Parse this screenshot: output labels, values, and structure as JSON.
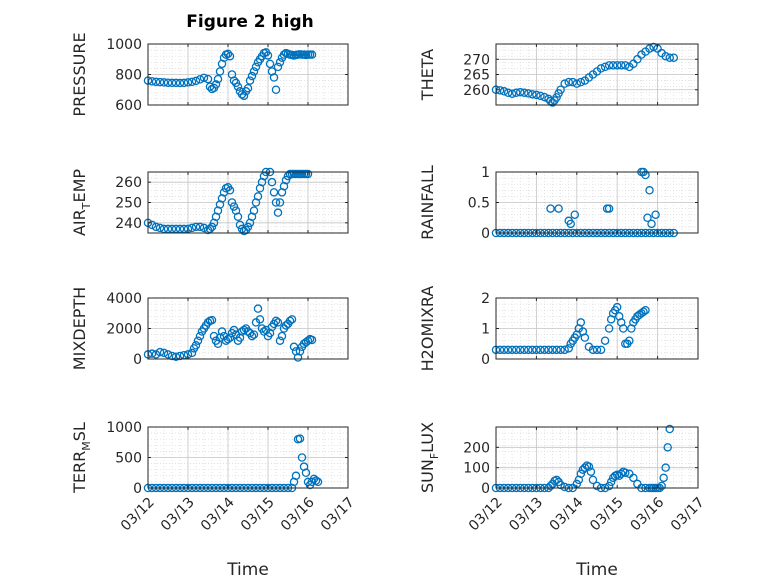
{
  "figure": {
    "title": "Figure 2 high",
    "marker_color": "#0072BD",
    "axes_color": "#262626",
    "grid_color": "#b0b0b0"
  },
  "chart_data": [
    {
      "type": "scatter",
      "ylabel": "PRESSURE",
      "ylabel_sub": "",
      "ylim": [
        600,
        1000
      ],
      "yticks": [
        600,
        800,
        1000
      ],
      "show_x_ticklabels": false,
      "xlabel": "",
      "x": [
        12.0,
        12.1,
        12.2,
        12.3,
        12.4,
        12.5,
        12.6,
        12.7,
        12.8,
        12.9,
        13.0,
        13.1,
        13.2,
        13.3,
        13.4,
        13.5,
        13.55,
        13.6,
        13.65,
        13.7,
        13.75,
        13.8,
        13.85,
        13.9,
        13.95,
        14.0,
        14.05,
        14.1,
        14.15,
        14.2,
        14.25,
        14.3,
        14.35,
        14.4,
        14.45,
        14.5,
        14.55,
        14.6,
        14.65,
        14.7,
        14.75,
        14.8,
        14.85,
        14.9,
        14.95,
        15.0,
        15.05,
        15.1,
        15.15,
        15.2,
        15.25,
        15.3,
        15.35,
        15.4,
        15.45,
        15.5,
        15.55,
        15.6,
        15.65,
        15.7,
        15.75,
        15.8,
        15.85,
        15.9,
        15.95,
        16.0,
        16.05,
        16.1
      ],
      "y": [
        760,
        755,
        752,
        750,
        748,
        746,
        745,
        745,
        744,
        745,
        748,
        752,
        758,
        768,
        778,
        770,
        720,
        705,
        712,
        735,
        770,
        820,
        870,
        910,
        930,
        935,
        920,
        800,
        760,
        745,
        720,
        690,
        670,
        660,
        690,
        710,
        760,
        790,
        820,
        850,
        880,
        900,
        920,
        940,
        945,
        925,
        870,
        820,
        780,
        700,
        850,
        880,
        910,
        930,
        940,
        935,
        930,
        928,
        925,
        928,
        930,
        932,
        930,
        930,
        928,
        930,
        930,
        930
      ]
    },
    {
      "type": "scatter",
      "ylabel": "THETA",
      "ylabel_sub": "",
      "ylim": [
        255,
        275
      ],
      "yticks": [
        260,
        265,
        270
      ],
      "show_x_ticklabels": false,
      "xlabel": "",
      "x": [
        12.0,
        12.1,
        12.2,
        12.3,
        12.4,
        12.5,
        12.6,
        12.7,
        12.8,
        12.9,
        13.0,
        13.1,
        13.2,
        13.3,
        13.35,
        13.4,
        13.45,
        13.5,
        13.55,
        13.6,
        13.7,
        13.8,
        13.9,
        14.0,
        14.1,
        14.2,
        14.3,
        14.4,
        14.5,
        14.6,
        14.7,
        14.8,
        14.9,
        15.0,
        15.1,
        15.2,
        15.3,
        15.4,
        15.5,
        15.6,
        15.7,
        15.8,
        15.9,
        16.0,
        16.1,
        16.2,
        16.3,
        16.4
      ],
      "y": [
        260,
        259.8,
        259.5,
        259,
        258.7,
        259,
        259.2,
        259,
        258.8,
        258.5,
        258.3,
        258,
        257.6,
        257,
        256.3,
        255.8,
        256.5,
        257.5,
        258.8,
        260,
        262,
        262.5,
        262.5,
        262,
        262.5,
        263,
        264,
        265,
        266,
        267,
        267.5,
        268,
        268,
        268,
        268,
        268,
        267.5,
        268.5,
        270,
        271.5,
        272.5,
        273.5,
        274,
        273.5,
        272,
        271,
        270.5,
        270.5
      ]
    },
    {
      "type": "scatter",
      "ylabel": "AIR",
      "ylabel_sub": "T",
      "ylabel_after": "EMP",
      "ylim": [
        235,
        265
      ],
      "yticks": [
        240,
        250,
        260
      ],
      "show_x_ticklabels": false,
      "xlabel": "",
      "x": [
        12.0,
        12.1,
        12.2,
        12.3,
        12.4,
        12.5,
        12.6,
        12.7,
        12.8,
        12.9,
        13.0,
        13.1,
        13.2,
        13.3,
        13.4,
        13.5,
        13.55,
        13.6,
        13.65,
        13.7,
        13.75,
        13.8,
        13.85,
        13.9,
        13.95,
        14.0,
        14.05,
        14.1,
        14.15,
        14.2,
        14.25,
        14.3,
        14.35,
        14.4,
        14.45,
        14.5,
        14.55,
        14.6,
        14.65,
        14.7,
        14.75,
        14.8,
        14.85,
        14.9,
        14.95,
        15.0,
        15.05,
        15.1,
        15.15,
        15.2,
        15.25,
        15.3,
        15.35,
        15.4,
        15.45,
        15.5,
        15.55,
        15.6,
        15.65,
        15.7,
        15.75,
        15.8,
        15.85,
        15.9,
        15.95,
        16.0
      ],
      "y": [
        240,
        239,
        238,
        237.5,
        237,
        237,
        237,
        237,
        237,
        237,
        237,
        237.5,
        238,
        238,
        237.5,
        236.5,
        237,
        238,
        240,
        243,
        246,
        249,
        252,
        255,
        257,
        257.5,
        256,
        250,
        248,
        246,
        243,
        239,
        237,
        236,
        236.5,
        238,
        240,
        243,
        246,
        250,
        253,
        257,
        260,
        263,
        265,
        266,
        265,
        260,
        255,
        250,
        245,
        250,
        255,
        258,
        261,
        263,
        264,
        264,
        264,
        264,
        264,
        264,
        264,
        264,
        264,
        264
      ]
    },
    {
      "type": "scatter",
      "ylabel": "RAINFALL",
      "ylabel_sub": "",
      "ylim": [
        0,
        1
      ],
      "yticks": [
        0,
        0.5,
        1
      ],
      "show_x_ticklabels": false,
      "xlabel": "",
      "x": [
        12.0,
        12.1,
        12.2,
        12.3,
        12.4,
        12.5,
        12.6,
        12.7,
        12.8,
        12.9,
        13.0,
        13.1,
        13.2,
        13.3,
        13.4,
        13.5,
        13.6,
        13.7,
        13.8,
        13.9,
        14.0,
        14.1,
        14.2,
        14.3,
        14.4,
        14.5,
        14.6,
        14.7,
        14.8,
        14.9,
        15.0,
        15.1,
        15.2,
        15.3,
        15.4,
        15.5,
        15.6,
        15.7,
        15.8,
        15.9,
        16.0,
        16.1,
        16.2,
        16.3,
        16.4,
        13.35,
        13.55,
        13.8,
        13.85,
        13.95,
        14.75,
        14.8,
        15.6,
        15.65,
        15.7,
        15.75,
        15.8,
        15.85,
        15.95
      ],
      "y": [
        0,
        0,
        0,
        0,
        0,
        0,
        0,
        0,
        0,
        0,
        0,
        0,
        0,
        0,
        0,
        0,
        0,
        0,
        0,
        0,
        0,
        0,
        0,
        0,
        0,
        0,
        0,
        0,
        0,
        0,
        0,
        0,
        0,
        0,
        0,
        0,
        0,
        0,
        0,
        0,
        0,
        0,
        0,
        0,
        0,
        0.4,
        0.4,
        0.2,
        0.15,
        0.3,
        0.4,
        0.4,
        1.0,
        1.0,
        0.95,
        0.25,
        0.7,
        0.15,
        0.3
      ]
    },
    {
      "type": "scatter",
      "ylabel": "MIXDEPTH",
      "ylabel_sub": "",
      "ylim": [
        0,
        4000
      ],
      "yticks": [
        0,
        2000,
        4000
      ],
      "show_x_ticklabels": false,
      "xlabel": "",
      "x": [
        12.0,
        12.1,
        12.2,
        12.3,
        12.4,
        12.5,
        12.6,
        12.7,
        12.8,
        12.9,
        13.0,
        13.1,
        13.15,
        13.2,
        13.25,
        13.3,
        13.35,
        13.4,
        13.45,
        13.5,
        13.55,
        13.6,
        13.65,
        13.7,
        13.75,
        13.8,
        13.85,
        13.9,
        13.95,
        14.0,
        14.05,
        14.1,
        14.15,
        14.2,
        14.25,
        14.3,
        14.35,
        14.4,
        14.45,
        14.5,
        14.55,
        14.6,
        14.65,
        14.7,
        14.75,
        14.8,
        14.85,
        14.9,
        14.95,
        15.0,
        15.05,
        15.1,
        15.15,
        15.2,
        15.25,
        15.3,
        15.35,
        15.4,
        15.45,
        15.5,
        15.55,
        15.6,
        15.65,
        15.7,
        15.75,
        15.8,
        15.85,
        15.9,
        15.95,
        16.0,
        16.05,
        16.1
      ],
      "y": [
        300,
        350,
        300,
        450,
        400,
        300,
        200,
        150,
        200,
        250,
        300,
        400,
        700,
        900,
        1200,
        1500,
        1800,
        2000,
        2200,
        2400,
        2500,
        2550,
        1500,
        1200,
        1000,
        1400,
        1800,
        1500,
        1200,
        1300,
        1400,
        1700,
        1900,
        1600,
        1200,
        1400,
        1800,
        1900,
        2000,
        1800,
        1700,
        1500,
        1600,
        2400,
        3300,
        2600,
        2000,
        1800,
        1900,
        1500,
        1700,
        2100,
        2300,
        2500,
        2400,
        1200,
        1500,
        2000,
        2200,
        2300,
        2500,
        2600,
        800,
        500,
        100,
        500,
        800,
        1000,
        1100,
        1200,
        1300,
        1250
      ]
    },
    {
      "type": "scatter",
      "ylabel": "H2OMIXRA",
      "ylabel_sub": "",
      "ylim": [
        0,
        2
      ],
      "yticks": [
        0,
        1,
        2
      ],
      "show_x_ticklabels": false,
      "xlabel": "",
      "x": [
        12.0,
        12.1,
        12.2,
        12.3,
        12.4,
        12.5,
        12.6,
        12.7,
        12.8,
        12.9,
        13.0,
        13.1,
        13.2,
        13.3,
        13.4,
        13.5,
        13.6,
        13.7,
        13.8,
        13.85,
        13.9,
        13.95,
        14.0,
        14.05,
        14.1,
        14.15,
        14.2,
        14.3,
        14.4,
        14.5,
        14.6,
        14.7,
        14.8,
        14.85,
        14.9,
        14.95,
        15.0,
        15.05,
        15.1,
        15.15,
        15.2,
        15.25,
        15.3,
        15.35,
        15.4,
        15.45,
        15.5,
        15.55,
        15.6,
        15.65,
        15.7
      ],
      "y": [
        0.3,
        0.3,
        0.3,
        0.3,
        0.3,
        0.3,
        0.3,
        0.3,
        0.3,
        0.3,
        0.3,
        0.3,
        0.3,
        0.3,
        0.3,
        0.3,
        0.3,
        0.3,
        0.35,
        0.5,
        0.6,
        0.7,
        0.8,
        1.0,
        1.2,
        0.9,
        0.7,
        0.4,
        0.3,
        0.3,
        0.3,
        0.6,
        1.0,
        1.3,
        1.5,
        1.6,
        1.7,
        1.4,
        1.2,
        1.0,
        0.5,
        0.5,
        0.6,
        1.0,
        1.2,
        1.3,
        1.4,
        1.45,
        1.5,
        1.55,
        1.6
      ]
    },
    {
      "type": "scatter",
      "ylabel": "TERR",
      "ylabel_sub": "M",
      "ylabel_after": "SL",
      "ylim": [
        0,
        1000
      ],
      "yticks": [
        0,
        500,
        1000
      ],
      "show_x_ticklabels": true,
      "xlabel": "Time",
      "xticklabels": [
        "03/12",
        "03/13",
        "03/14",
        "03/15",
        "03/16",
        "03/17"
      ],
      "x": [
        12.0,
        12.1,
        12.2,
        12.3,
        12.4,
        12.5,
        12.6,
        12.7,
        12.8,
        12.9,
        13.0,
        13.1,
        13.2,
        13.3,
        13.4,
        13.5,
        13.6,
        13.7,
        13.8,
        13.9,
        14.0,
        14.1,
        14.2,
        14.3,
        14.4,
        14.5,
        14.6,
        14.7,
        14.8,
        14.9,
        15.0,
        15.1,
        15.2,
        15.3,
        15.4,
        15.5,
        15.6,
        15.65,
        15.7,
        15.75,
        15.8,
        15.85,
        15.9,
        15.95,
        16.0,
        16.05,
        16.1,
        16.15,
        16.2,
        16.25
      ],
      "y": [
        0,
        0,
        0,
        0,
        0,
        0,
        0,
        0,
        0,
        0,
        0,
        0,
        0,
        0,
        0,
        0,
        0,
        0,
        0,
        0,
        0,
        0,
        0,
        0,
        0,
        0,
        0,
        0,
        0,
        0,
        0,
        0,
        0,
        0,
        0,
        0,
        0,
        100,
        200,
        800,
        810,
        500,
        350,
        250,
        100,
        50,
        100,
        150,
        120,
        100
      ]
    },
    {
      "type": "scatter",
      "ylabel": "SUN",
      "ylabel_sub": "F",
      "ylabel_after": "LUX",
      "ylim": [
        0,
        300
      ],
      "yticks": [
        0,
        100,
        200
      ],
      "show_x_ticklabels": true,
      "xlabel": "Time",
      "xticklabels": [
        "03/12",
        "03/13",
        "03/14",
        "03/15",
        "03/16",
        "03/17"
      ],
      "x": [
        12.0,
        12.1,
        12.2,
        12.3,
        12.4,
        12.5,
        12.6,
        12.7,
        12.8,
        12.9,
        13.0,
        13.1,
        13.2,
        13.3,
        13.35,
        13.4,
        13.45,
        13.5,
        13.55,
        13.6,
        13.7,
        13.8,
        13.9,
        14.0,
        14.05,
        14.1,
        14.15,
        14.2,
        14.25,
        14.3,
        14.35,
        14.4,
        14.5,
        14.6,
        14.7,
        14.8,
        14.85,
        14.9,
        14.95,
        15.0,
        15.05,
        15.1,
        15.15,
        15.2,
        15.3,
        15.4,
        15.5,
        15.6,
        15.7,
        15.8,
        15.85,
        15.9,
        15.95,
        16.0,
        16.05,
        16.1,
        16.15,
        16.2,
        16.25,
        16.3
      ],
      "y": [
        0,
        0,
        0,
        0,
        0,
        0,
        0,
        0,
        0,
        0,
        0,
        0,
        0,
        0,
        10,
        20,
        35,
        40,
        30,
        15,
        5,
        0,
        0,
        20,
        40,
        70,
        90,
        100,
        110,
        105,
        80,
        40,
        10,
        0,
        0,
        10,
        30,
        50,
        60,
        65,
        60,
        70,
        80,
        75,
        70,
        50,
        20,
        0,
        0,
        0,
        0,
        0,
        0,
        0,
        0,
        10,
        50,
        100,
        200,
        290
      ]
    }
  ]
}
